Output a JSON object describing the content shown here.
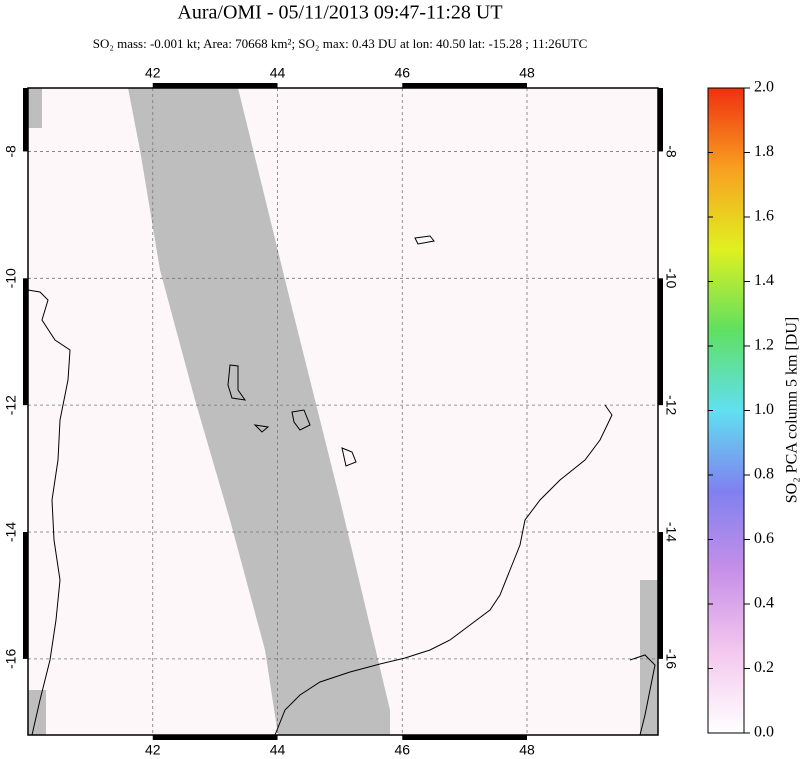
{
  "map": {
    "title": "Aura/OMI - 05/11/2013 09:47-11:28 UT",
    "subtitle": "SO₂ mass: -0.001 kt; Area: 70668 km²; SO₂ max: 0.43 DU at lon: 40.50 lat: -15.28 ; 11:26UTC",
    "lon_range": [
      40,
      50.1
    ],
    "lat_range": [
      -7,
      -17.2
    ],
    "lon_ticks": [
      42,
      44,
      46,
      48
    ],
    "lat_ticks": [
      -8,
      -10,
      -12,
      -14,
      -16
    ]
  },
  "colorbar": {
    "label": "SO₂ PCA column 5 km [DU]",
    "range": [
      0,
      2
    ],
    "ticks": [
      {
        "value": 0,
        "label": "0.0"
      },
      0.2,
      0.4,
      0.6,
      0.8,
      {
        "value": 1,
        "label": "1.0"
      },
      1.2,
      1.4,
      1.6,
      1.8,
      {
        "value": 2,
        "label": "2.0"
      }
    ],
    "colors": [
      "#ffffff",
      "#f4c8ee",
      "#c890e8",
      "#8080f0",
      "#60e0f0",
      "#60e060",
      "#e0f020",
      "#f8a020",
      "#f03010"
    ]
  }
}
